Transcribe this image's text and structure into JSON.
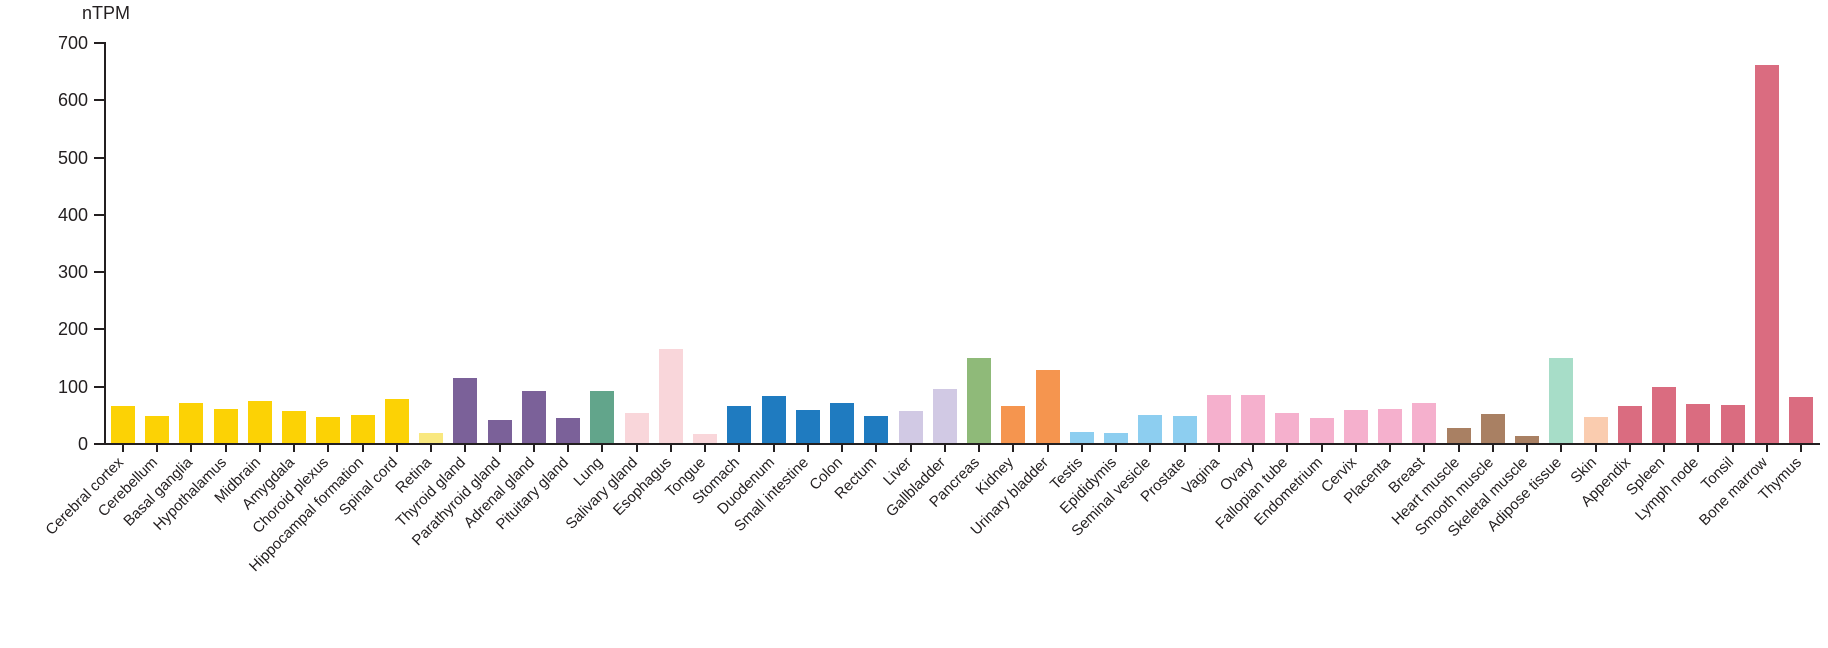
{
  "chart_data": {
    "type": "bar",
    "title": "",
    "xlabel": "",
    "ylabel": "nTPM",
    "ylim": [
      0,
      700
    ],
    "yticks": [
      0,
      100,
      200,
      300,
      400,
      500,
      600,
      700
    ],
    "grid": false,
    "legend": "none",
    "categories": [
      "Cerebral cortex",
      "Cerebellum",
      "Basal ganglia",
      "Hypothalamus",
      "Midbrain",
      "Amygdala",
      "Choroid plexus",
      "Hippocampal formation",
      "Spinal cord",
      "Retina",
      "Thyroid gland",
      "Parathyroid gland",
      "Adrenal gland",
      "Pituitary gland",
      "Lung",
      "Salivary gland",
      "Esophagus",
      "Tongue",
      "Stomach",
      "Duodenum",
      "Small intestine",
      "Colon",
      "Rectum",
      "Liver",
      "Gallbladder",
      "Pancreas",
      "Kidney",
      "Urinary bladder",
      "Testis",
      "Epididymis",
      "Seminal vesicle",
      "Prostate",
      "Vagina",
      "Ovary",
      "Fallopian tube",
      "Endometrium",
      "Cervix",
      "Placenta",
      "Breast",
      "Heart muscle",
      "Smooth muscle",
      "Skeletal muscle",
      "Adipose tissue",
      "Skin",
      "Appendix",
      "Spleen",
      "Lymph node",
      "Tonsil",
      "Bone marrow",
      "Thymus"
    ],
    "values": [
      65,
      47,
      70,
      60,
      73,
      56,
      45,
      49,
      77,
      17,
      113,
      40,
      90,
      44,
      91,
      53,
      164,
      15,
      64,
      82,
      57,
      70,
      47,
      55,
      94,
      149,
      65,
      127,
      20,
      18,
      49,
      48,
      83,
      83,
      52,
      43,
      58,
      59,
      70,
      26,
      50,
      13,
      148,
      46,
      65,
      98,
      68,
      66,
      660,
      80
    ],
    "bar_colors": [
      "#FCD205",
      "#FCD205",
      "#FCD205",
      "#FCD205",
      "#FCD205",
      "#FCD205",
      "#FCD205",
      "#FCD205",
      "#FCD205",
      "#F9E87F",
      "#7B6199",
      "#7B6199",
      "#7B6199",
      "#7B6199",
      "#62A58B",
      "#F9D6DA",
      "#F9D6DA",
      "#F9D6DA",
      "#1F7BC0",
      "#1F7BC0",
      "#1F7BC0",
      "#1F7BC0",
      "#1F7BC0",
      "#D1C9E4",
      "#D1C9E4",
      "#8FBA79",
      "#F5954F",
      "#F5954F",
      "#8DCEF0",
      "#8DCEF0",
      "#8DCEF0",
      "#8DCEF0",
      "#F5B0CD",
      "#F5B0CD",
      "#F5B0CD",
      "#F5B0CD",
      "#F5B0CD",
      "#F5B0CD",
      "#F5B0CD",
      "#A98063",
      "#A98063",
      "#A98063",
      "#A7DDC8",
      "#FACCAF",
      "#DA6C80",
      "#DA6C80",
      "#DA6C80",
      "#DA6C80",
      "#DA6C80",
      "#DA6C80"
    ],
    "axis_color": "#231f20"
  }
}
